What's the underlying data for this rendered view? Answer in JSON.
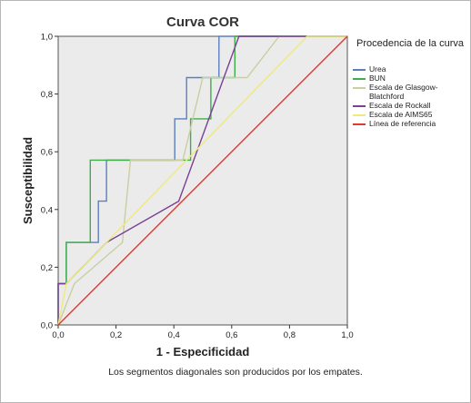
{
  "chart_data": {
    "type": "line",
    "title": "Curva COR",
    "xlabel": "1 - Especificidad",
    "ylabel": "Susceptibilidad",
    "xlim": [
      0,
      1
    ],
    "ylim": [
      0,
      1
    ],
    "x_ticks": [
      "0,0",
      "0,2",
      "0,4",
      "0,6",
      "0,8",
      "1,0"
    ],
    "y_ticks": [
      "0,0",
      "0,2",
      "0,4",
      "0,6",
      "0,8",
      "1,0"
    ],
    "grid": false,
    "legend_placement": "right",
    "legend_title": "Procedencia de la curva",
    "series": [
      {
        "name": "Urea",
        "color": "#5b7fbd",
        "points": [
          [
            0,
            0
          ],
          [
            0,
            0.143
          ],
          [
            0.028,
            0.143
          ],
          [
            0.028,
            0.286
          ],
          [
            0.139,
            0.286
          ],
          [
            0.139,
            0.429
          ],
          [
            0.167,
            0.429
          ],
          [
            0.167,
            0.571
          ],
          [
            0.403,
            0.571
          ],
          [
            0.403,
            0.714
          ],
          [
            0.444,
            0.714
          ],
          [
            0.444,
            0.857
          ],
          [
            0.556,
            0.857
          ],
          [
            0.556,
            1.0
          ],
          [
            1,
            1
          ]
        ]
      },
      {
        "name": "BUN",
        "color": "#3fae49",
        "points": [
          [
            0,
            0
          ],
          [
            0,
            0.143
          ],
          [
            0.028,
            0.143
          ],
          [
            0.028,
            0.286
          ],
          [
            0.111,
            0.286
          ],
          [
            0.111,
            0.571
          ],
          [
            0.458,
            0.571
          ],
          [
            0.458,
            0.714
          ],
          [
            0.528,
            0.714
          ],
          [
            0.528,
            0.857
          ],
          [
            0.611,
            0.857
          ],
          [
            0.611,
            1.0
          ],
          [
            1,
            1
          ]
        ]
      },
      {
        "name": "Escala de Glasgow-Blatchford",
        "color": "#c9cfa0",
        "points": [
          [
            0,
            0
          ],
          [
            0.056,
            0.143
          ],
          [
            0.222,
            0.286
          ],
          [
            0.25,
            0.571
          ],
          [
            0.431,
            0.571
          ],
          [
            0.5,
            0.857
          ],
          [
            0.653,
            0.857
          ],
          [
            0.764,
            1.0
          ],
          [
            1,
            1
          ]
        ]
      },
      {
        "name": "Escala de Rockall",
        "color": "#7b3f96",
        "points": [
          [
            0,
            0
          ],
          [
            0,
            0.143
          ],
          [
            0.028,
            0.143
          ],
          [
            0.167,
            0.286
          ],
          [
            0.417,
            0.429
          ],
          [
            0.625,
            1.0
          ],
          [
            1,
            1
          ]
        ]
      },
      {
        "name": "Escala de AIMS65",
        "color": "#eeea7c",
        "points": [
          [
            0,
            0
          ],
          [
            0.028,
            0.143
          ],
          [
            0.861,
            1.0
          ],
          [
            1,
            1
          ]
        ]
      },
      {
        "name": "Línea de referencia",
        "color": "#e03a2f",
        "points": [
          [
            0,
            0
          ],
          [
            1,
            1
          ]
        ]
      }
    ]
  },
  "footnote": "Los segmentos diagonales son producidos por los empates."
}
